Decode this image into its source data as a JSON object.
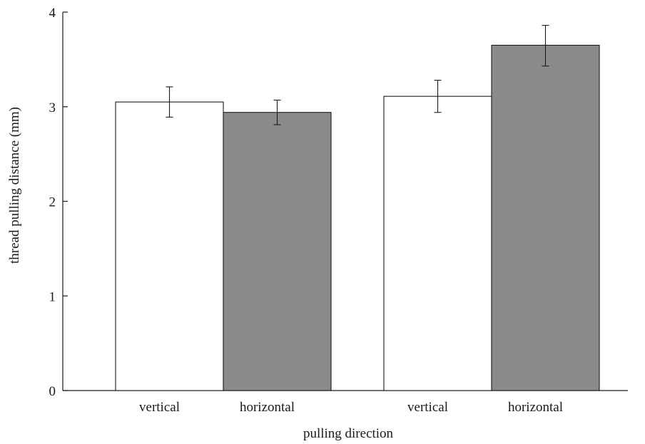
{
  "chart_data": {
    "type": "bar",
    "title": "",
    "xlabel": "pulling direction",
    "ylabel": "thread pulling distance (mm)",
    "ylim": [
      0,
      4
    ],
    "yticks": [
      "0",
      "1",
      "2",
      "3",
      "4"
    ],
    "grid": false,
    "bars": [
      {
        "label": "vertical",
        "value": 3.05,
        "error_low": 2.89,
        "error_high": 3.21,
        "color": "#ffffff"
      },
      {
        "label": "horizontal",
        "value": 2.94,
        "error_low": 2.81,
        "error_high": 3.07,
        "color": "#8a8b8d"
      },
      {
        "label": "vertical",
        "value": 3.11,
        "error_low": 2.94,
        "error_high": 3.28,
        "color": "#ffffff"
      },
      {
        "label": "horizontal",
        "value": 3.65,
        "error_low": 3.43,
        "error_high": 3.86,
        "color": "#8a8b8d"
      }
    ]
  }
}
